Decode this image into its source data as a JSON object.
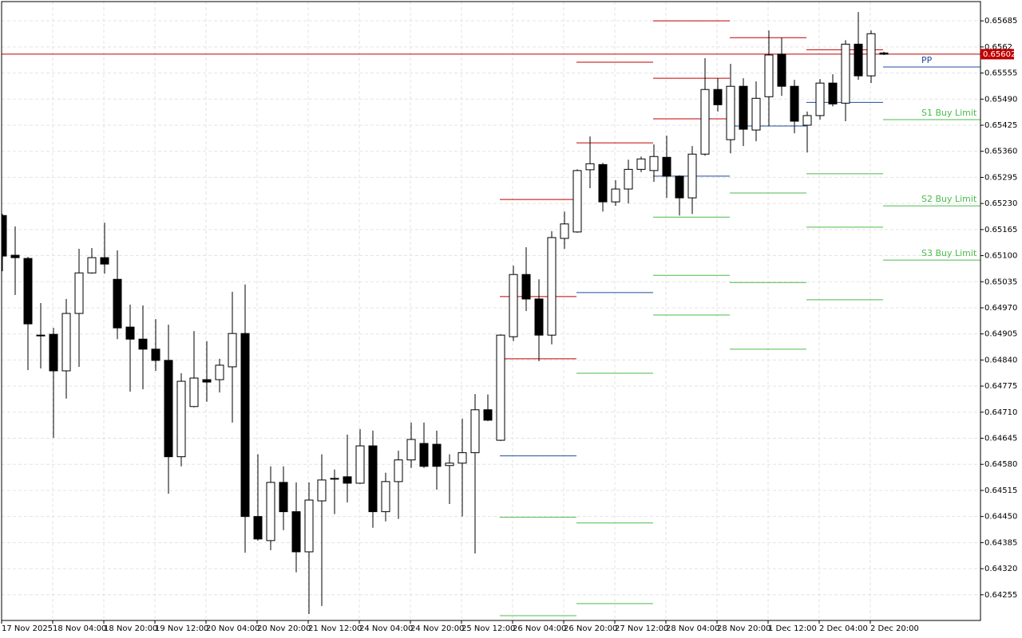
{
  "chart_data": {
    "type": "candlestick",
    "categories": [
      "17 Nov 2025",
      null,
      null,
      null,
      "18 Nov 04:00",
      null,
      null,
      null,
      "18 Nov 20:00",
      null,
      null,
      null,
      "19 Nov 12:00",
      null,
      null,
      null,
      "20 Nov 04:00",
      null,
      null,
      null,
      "20 Nov 20:00",
      null,
      null,
      null,
      "21 Nov 12:00",
      null,
      null,
      null,
      "24 Nov 04:00",
      null,
      null,
      null,
      "24 Nov 20:00",
      null,
      null,
      null,
      "25 Nov 12:00",
      null,
      null,
      null,
      "26 Nov 04:00",
      null,
      null,
      null,
      "26 Nov 20:00",
      null,
      null,
      null,
      "27 Nov 12:00",
      null,
      null,
      null,
      "28 Nov 04:00",
      null,
      null,
      null,
      "28 Nov 20:00",
      null,
      null,
      null,
      "1 Dec 12:00",
      null,
      null,
      null,
      "2 Dec 04:00",
      null,
      null,
      null,
      "2 Dec 20:00",
      null
    ],
    "open": [
      0.652,
      0.65101,
      0.65093,
      0.64902,
      0.64904,
      0.64813,
      0.64956,
      0.65057,
      0.65095,
      0.65041,
      0.64922,
      0.64892,
      0.64867,
      0.64839,
      0.64599,
      0.64724,
      0.64791,
      0.64791,
      0.64823,
      0.64906,
      0.6445,
      0.6439,
      0.64535,
      0.64462,
      0.64362,
      0.64489,
      0.64543,
      0.64549,
      0.64533,
      0.64626,
      0.64462,
      0.64537,
      0.64591,
      0.64632,
      0.6463,
      0.64577,
      0.64583,
      0.64609,
      0.64716,
      0.6464,
      0.64898,
      0.65053,
      0.64992,
      0.64902,
      0.65143,
      0.65159,
      0.65314,
      0.65327,
      0.65234,
      0.65266,
      0.65315,
      0.65312,
      0.65345,
      0.65298,
      0.65244,
      0.65353,
      0.65514,
      0.65389,
      0.65522,
      0.65413,
      0.65496,
      0.65602,
      0.65522,
      0.65425,
      0.65449,
      0.6553,
      0.6548,
      0.65627,
      0.65548,
      0.65605
    ],
    "high": [
      0.65204,
      0.65173,
      0.65097,
      0.64982,
      0.6492,
      0.64992,
      0.65117,
      0.65119,
      0.65182,
      0.65113,
      0.64978,
      0.64976,
      0.64942,
      0.64928,
      0.64807,
      0.64912,
      0.64887,
      0.64843,
      0.6501,
      0.65028,
      0.64605,
      0.64575,
      0.64575,
      0.64535,
      0.64535,
      0.64605,
      0.64567,
      0.64654,
      0.64668,
      0.64664,
      0.64559,
      0.64614,
      0.64684,
      0.64684,
      0.64664,
      0.64605,
      0.64694,
      0.64755,
      0.64754,
      0.64904,
      0.65075,
      0.65121,
      0.65041,
      0.65161,
      0.6521,
      0.65315,
      0.65397,
      0.65331,
      0.65288,
      0.65339,
      0.65347,
      0.65377,
      0.65399,
      0.653,
      0.65373,
      0.65592,
      0.65542,
      0.65578,
      0.65542,
      0.65534,
      0.65661,
      0.65643,
      0.65538,
      0.65459,
      0.6554,
      0.65552,
      0.65637,
      0.65707,
      0.65661,
      0.65608
    ],
    "low": [
      0.65061,
      0.65002,
      0.64815,
      0.64819,
      0.64646,
      0.64744,
      0.64823,
      0.65055,
      0.65055,
      0.64892,
      0.64761,
      0.64767,
      0.64813,
      0.64507,
      0.64575,
      0.64722,
      0.64736,
      0.64759,
      0.64684,
      0.6436,
      0.6439,
      0.64366,
      0.64416,
      0.64311,
      0.64207,
      0.64227,
      0.64456,
      0.64485,
      0.64531,
      0.64422,
      0.64438,
      0.64444,
      0.64571,
      0.64571,
      0.64517,
      0.64481,
      0.6445,
      0.64358,
      0.64688,
      0.64638,
      0.64887,
      0.64962,
      0.64837,
      0.64879,
      0.65117,
      0.65157,
      0.65268,
      0.6521,
      0.65224,
      0.6523,
      0.65308,
      0.65284,
      0.65244,
      0.652,
      0.65204,
      0.65349,
      0.65459,
      0.65355,
      0.65373,
      0.65385,
      0.65423,
      0.65498,
      0.65405,
      0.65357,
      0.65439,
      0.65472,
      0.65435,
      0.65538,
      0.6553,
      0.656
    ],
    "close": [
      0.65099,
      0.65095,
      0.6493,
      0.649,
      0.64813,
      0.64956,
      0.65057,
      0.65095,
      0.65079,
      0.6492,
      0.64892,
      0.64867,
      0.64839,
      0.64599,
      0.64787,
      0.64795,
      0.64785,
      0.64827,
      0.64906,
      0.6445,
      0.64394,
      0.64535,
      0.64462,
      0.64362,
      0.64491,
      0.64541,
      0.64545,
      0.64533,
      0.64626,
      0.64462,
      0.64537,
      0.64591,
      0.64642,
      0.64575,
      0.64575,
      0.64583,
      0.64609,
      0.64716,
      0.6469,
      0.64902,
      0.65053,
      0.64992,
      0.64902,
      0.65145,
      0.65179,
      0.65312,
      0.65329,
      0.65234,
      0.65266,
      0.65315,
      0.65341,
      0.65347,
      0.65298,
      0.65244,
      0.65353,
      0.65514,
      0.65476,
      0.65522,
      0.65415,
      0.65492,
      0.656,
      0.65522,
      0.65435,
      0.65449,
      0.6553,
      0.65478,
      0.65627,
      0.65548,
      0.65653,
      0.65602
    ],
    "up_color": "#ffffff",
    "down_color": "#000000",
    "ylim": [
      0.64191,
      0.65737
    ],
    "yticks": [
      0.65685,
      0.6562,
      0.65555,
      {
        "value": 0.6549,
        "label": "0.65490"
      },
      0.65425,
      {
        "value": 0.6536,
        "label": "0.65360"
      },
      0.65295,
      {
        "value": 0.6523,
        "label": "0.65230"
      },
      0.65165,
      {
        "value": 0.651,
        "label": "0.65100"
      },
      0.65035,
      {
        "value": 0.6497,
        "label": "0.64970"
      },
      0.64905,
      {
        "value": 0.6484,
        "label": "0.64840"
      },
      0.64775,
      {
        "value": 0.6471,
        "label": "0.64710"
      },
      0.64645,
      {
        "value": 0.6458,
        "label": "0.64580"
      },
      0.64515,
      {
        "value": 0.6445,
        "label": "0.64450"
      },
      0.64385,
      {
        "value": 0.6432,
        "label": "0.64320"
      },
      0.64255
    ],
    "grid": true,
    "last_price": 0.65602,
    "last_price_color": "#c00000",
    "resistance_color": "#c00000",
    "pp_color": "#1f4e9c",
    "support_color": "#4cbb4c",
    "pivot_levels": [
      {
        "resistance": [
          0.6524,
          0.64998,
          0.64843
        ],
        "pp": 0.64601,
        "support": [
          0.64448,
          0.64203
        ]
      },
      {
        "resistance": [
          0.65582,
          0.65381
        ],
        "pp": 0.65008,
        "support": [
          0.64807,
          0.64434,
          0.64233
        ]
      },
      {
        "resistance": [
          0.65685,
          0.65542,
          0.65441
        ],
        "pp": 0.65298,
        "support": [
          0.65196,
          0.65051,
          0.64952
        ]
      },
      {
        "resistance": [
          0.65643
        ],
        "pp": 0.65423,
        "support": [
          0.65256,
          0.65033,
          0.64867
        ]
      },
      {
        "resistance": [
          0.65613
        ],
        "pp": 0.65482,
        "support": [
          0.65304,
          0.65171,
          0.6499
        ]
      },
      {
        "pp": 0.6557,
        "pp_label": "PP",
        "support": [
          0.65439,
          0.65224,
          0.65089
        ],
        "support_labels": [
          "S1 Buy Limit",
          "S2 Buy Limit",
          "S3 Buy Limit"
        ]
      }
    ]
  }
}
